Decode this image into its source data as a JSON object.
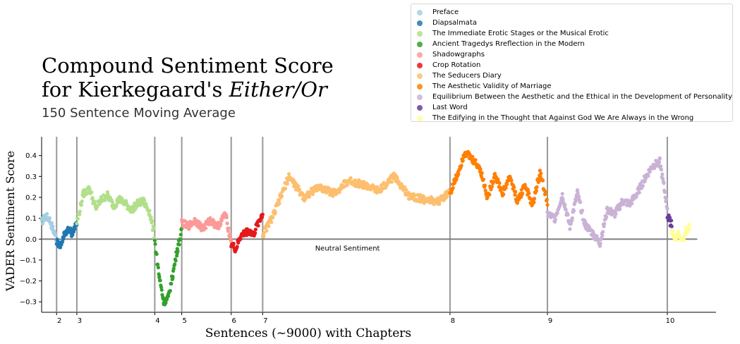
{
  "title": {
    "line1": "Compound Sentiment Score",
    "line2_prefix": "for Kierkegaard's ",
    "line2_italic": "Either/Or"
  },
  "subtitle": "150 Sentence Moving Average",
  "chart_data": {
    "type": "scatter",
    "xlabel": "Sentences (~9000) with Chapters",
    "ylabel": "VADER Sentiment Score",
    "xlim": [
      0,
      9000
    ],
    "ylim": [
      -0.35,
      0.49
    ],
    "yticks": [
      -0.3,
      -0.2,
      -0.1,
      0.0,
      0.1,
      0.2,
      0.3,
      0.4
    ],
    "ytick_labels": [
      "−0.3",
      "−0.2",
      "−0.1",
      "0.0",
      "0.1",
      "0.2",
      "0.3",
      "0.4"
    ],
    "grid": false,
    "legend_position": "top-right",
    "neutral_line": {
      "y": 0.0,
      "label": "Neutral Sentiment",
      "label_x": 3650,
      "color": "#808080"
    },
    "chapter_boundaries": [
      {
        "x": 200,
        "label": "2"
      },
      {
        "x": 470,
        "label": "3"
      },
      {
        "x": 1510,
        "label": "4"
      },
      {
        "x": 1870,
        "label": "5"
      },
      {
        "x": 2530,
        "label": "6"
      },
      {
        "x": 2950,
        "label": "7"
      },
      {
        "x": 5450,
        "label": "8"
      },
      {
        "x": 6750,
        "label": "9"
      },
      {
        "x": 8350,
        "label": "10"
      }
    ],
    "series": [
      {
        "name": "Preface",
        "color": "#a6cee3",
        "x": [
          0,
          50,
          100,
          150,
          200
        ],
        "y": [
          0.08,
          0.11,
          0.1,
          0.05,
          0.0
        ]
      },
      {
        "name": "Diapsalmata",
        "color": "#1f78b4",
        "x": [
          200,
          250,
          300,
          350,
          400,
          470
        ],
        "y": [
          -0.01,
          -0.03,
          0.02,
          0.05,
          0.03,
          0.07
        ]
      },
      {
        "name": "The Immediate Erotic Stages or the Musical Erotic",
        "color": "#b2df8a",
        "x": [
          470,
          560,
          640,
          720,
          800,
          880,
          960,
          1040,
          1120,
          1200,
          1280,
          1360,
          1440,
          1510
        ],
        "y": [
          0.08,
          0.22,
          0.24,
          0.15,
          0.19,
          0.21,
          0.16,
          0.19,
          0.17,
          0.14,
          0.17,
          0.18,
          0.13,
          0.01
        ]
      },
      {
        "name": "Ancient Tragedys Rreflection in the Modern",
        "color": "#33a02c",
        "x": [
          1510,
          1570,
          1630,
          1690,
          1750,
          1810,
          1870
        ],
        "y": [
          -0.01,
          -0.18,
          -0.3,
          -0.28,
          -0.17,
          -0.05,
          0.04
        ]
      },
      {
        "name": "Shadowgraphs",
        "color": "#fb9a99",
        "x": [
          1870,
          1950,
          2050,
          2150,
          2250,
          2350,
          2450,
          2530
        ],
        "y": [
          0.08,
          0.06,
          0.09,
          0.05,
          0.09,
          0.06,
          0.12,
          -0.01
        ]
      },
      {
        "name": "Crop Rotation",
        "color": "#e31a1c",
        "x": [
          2530,
          2590,
          2650,
          2710,
          2770,
          2830,
          2890,
          2950
        ],
        "y": [
          -0.02,
          -0.05,
          0.01,
          0.03,
          0.04,
          0.02,
          0.08,
          0.12
        ]
      },
      {
        "name": "The Seducers Diary",
        "color": "#fdbf6f",
        "x": [
          2950,
          3100,
          3300,
          3500,
          3700,
          3900,
          4100,
          4300,
          4500,
          4700,
          4900,
          5100,
          5300,
          5450
        ],
        "y": [
          0.02,
          0.12,
          0.3,
          0.2,
          0.25,
          0.22,
          0.28,
          0.26,
          0.23,
          0.3,
          0.21,
          0.19,
          0.18,
          0.23
        ]
      },
      {
        "name": "The Aesthetic Validity of Marriage",
        "color": "#ff7f00",
        "x": [
          5450,
          5550,
          5650,
          5750,
          5850,
          5950,
          6050,
          6150,
          6250,
          6350,
          6450,
          6550,
          6650,
          6750
        ],
        "y": [
          0.22,
          0.31,
          0.42,
          0.38,
          0.34,
          0.2,
          0.31,
          0.22,
          0.3,
          0.18,
          0.26,
          0.16,
          0.32,
          0.18
        ]
      },
      {
        "name": "Equilibrium Between the Aesthetic and the Ethical in the Development of Personality",
        "color": "#cab2d6",
        "x": [
          6750,
          6850,
          6950,
          7050,
          7150,
          7250,
          7350,
          7450,
          7550,
          7650,
          7750,
          7850,
          7950,
          8050,
          8150,
          8250,
          8350
        ],
        "y": [
          0.12,
          0.1,
          0.21,
          0.06,
          0.22,
          0.07,
          0.03,
          -0.02,
          0.14,
          0.12,
          0.18,
          0.17,
          0.22,
          0.29,
          0.35,
          0.37,
          0.15
        ]
      },
      {
        "name": "Last Word",
        "color": "#6a3d9a",
        "x": [
          8350,
          8370,
          8390,
          8410
        ],
        "y": [
          0.12,
          0.1,
          0.08,
          0.07
        ]
      },
      {
        "name": "The Edifying in the Thought that Against God We Are Always in the Wrong",
        "color": "#ffff99",
        "x": [
          8410,
          8450,
          8500,
          8550,
          8600,
          8650
        ],
        "y": [
          0.05,
          0.0,
          0.03,
          -0.01,
          0.04,
          0.06
        ]
      }
    ]
  }
}
